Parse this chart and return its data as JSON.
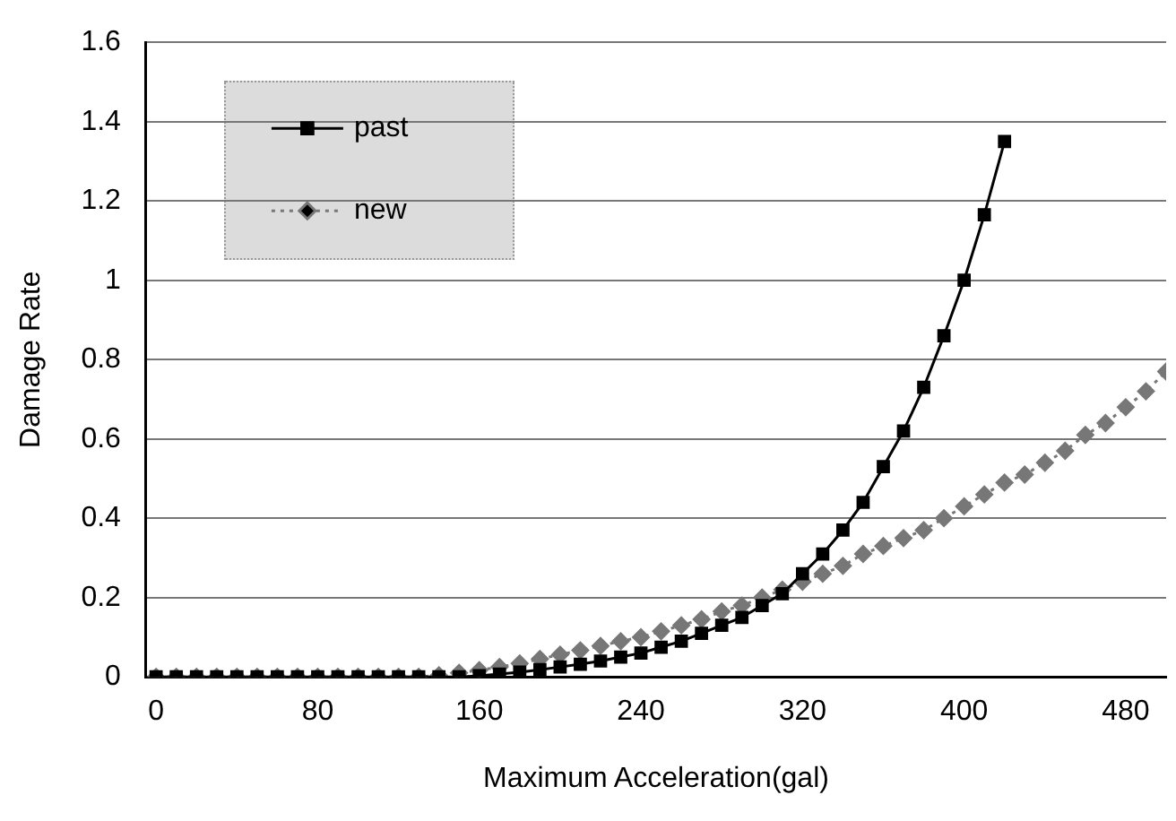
{
  "chart_data": {
    "type": "line",
    "xlabel": "Maximum Acceleration(gal)",
    "ylabel": "Damage Rate",
    "x": [
      0,
      10,
      20,
      30,
      40,
      50,
      60,
      70,
      80,
      90,
      100,
      110,
      120,
      130,
      140,
      150,
      160,
      170,
      180,
      190,
      200,
      210,
      220,
      230,
      240,
      250,
      260,
      270,
      280,
      290,
      300,
      310,
      320,
      330,
      340,
      350,
      360,
      370,
      380,
      390,
      400,
      410,
      420,
      430,
      440,
      450,
      460,
      470,
      480,
      490,
      500
    ],
    "series": [
      {
        "name": "past",
        "color": "#000000",
        "marker": "square",
        "line_style": "solid",
        "values": [
          0,
          0,
          0,
          0,
          0,
          0,
          0,
          0,
          0,
          0,
          0,
          0,
          0,
          0,
          0,
          0,
          0.003,
          0.007,
          0.012,
          0.018,
          0.025,
          0.032,
          0.04,
          0.05,
          0.06,
          0.075,
          0.09,
          0.11,
          0.13,
          0.15,
          0.18,
          0.21,
          0.26,
          0.31,
          0.37,
          0.44,
          0.53,
          0.62,
          0.73,
          0.86,
          1.0,
          1.165,
          1.35,
          null,
          null,
          null,
          null,
          null,
          null,
          null,
          null
        ]
      },
      {
        "name": "new",
        "color": "#777777",
        "marker": "diamond",
        "line_style": "dotted",
        "values": [
          0,
          0,
          0,
          0,
          0,
          0,
          0,
          0,
          0,
          0,
          0,
          0,
          0,
          0,
          0.004,
          0.01,
          0.017,
          0.025,
          0.034,
          0.045,
          0.056,
          0.067,
          0.078,
          0.09,
          0.1,
          0.115,
          0.13,
          0.145,
          0.165,
          0.18,
          0.2,
          0.22,
          0.24,
          0.26,
          0.28,
          0.31,
          0.33,
          0.35,
          0.37,
          0.4,
          0.43,
          0.46,
          0.49,
          0.51,
          0.54,
          0.57,
          0.61,
          0.64,
          0.68,
          0.72,
          0.77
        ]
      }
    ],
    "xlim": [
      -5,
      500
    ],
    "xticks": [
      0,
      80,
      160,
      240,
      320,
      400,
      480
    ],
    "ylim": [
      0,
      1.6
    ],
    "yticks": [
      0,
      0.2,
      0.4,
      0.6,
      0.8,
      1,
      1.2,
      1.4,
      1.6
    ],
    "grid": "y",
    "legend": "top left"
  }
}
